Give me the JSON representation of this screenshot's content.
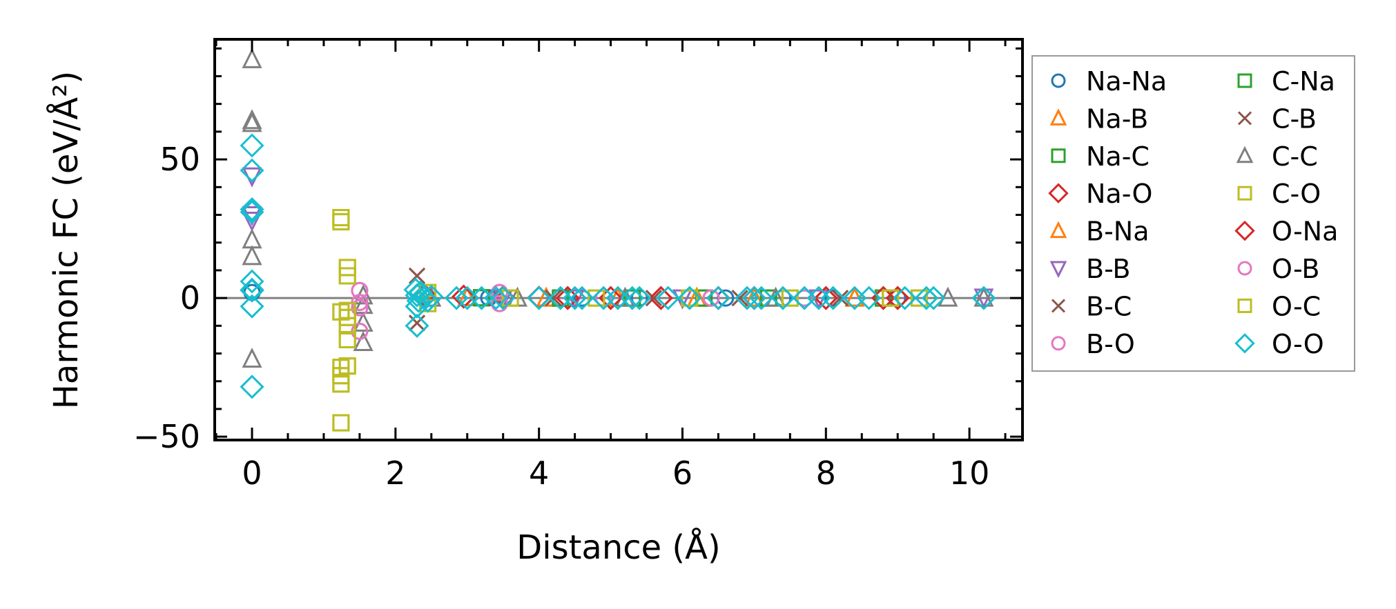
{
  "chart_data": {
    "type": "scatter",
    "title": "",
    "xlabel": "Distance (Å)",
    "ylabel": "Harmonic FC (eV/Å²)",
    "xlim": [
      -0.52,
      10.74
    ],
    "ylim": [
      -51.2,
      93.3
    ],
    "xticks": [
      0,
      2,
      4,
      6,
      8,
      10
    ],
    "xtick_labels": [
      "0",
      "2",
      "4",
      "6",
      "8",
      "10"
    ],
    "yticks": [
      -50,
      0,
      50
    ],
    "ytick_labels": [
      "−50",
      "0",
      "50"
    ],
    "x_minor_step": 0.5,
    "y_minor_step": 10,
    "zero_line": true,
    "grid": false,
    "legend_position": "outside-right",
    "legend_columns": 2,
    "series": [
      {
        "name": "Na-Na",
        "marker": "circle",
        "color": "#1f77b4",
        "points": [
          [
            0,
            2
          ],
          [
            3.3,
            0.1
          ],
          [
            4.6,
            0
          ],
          [
            5.4,
            0
          ],
          [
            6.6,
            0
          ],
          [
            7.4,
            0
          ],
          [
            8.1,
            0
          ],
          [
            9.0,
            0
          ]
        ]
      },
      {
        "name": "Na-B",
        "marker": "triangle-up",
        "color": "#ff7f0e",
        "points": [
          [
            3.0,
            0.2
          ],
          [
            4.1,
            0
          ],
          [
            5.1,
            0
          ],
          [
            6.2,
            0
          ],
          [
            7.0,
            0
          ],
          [
            8.4,
            0
          ]
        ]
      },
      {
        "name": "Na-C",
        "marker": "square",
        "color": "#2ca02c",
        "points": [
          [
            3.2,
            0.1
          ],
          [
            4.3,
            0
          ],
          [
            5.3,
            0
          ],
          [
            6.3,
            0
          ],
          [
            7.2,
            0
          ],
          [
            8.8,
            0
          ]
        ]
      },
      {
        "name": "Na-O",
        "marker": "diamond",
        "color": "#d62728",
        "points": [
          [
            2.4,
            1
          ],
          [
            2.95,
            0.5
          ],
          [
            3.5,
            0.2
          ],
          [
            4.0,
            0.1
          ],
          [
            4.4,
            0
          ],
          [
            5.0,
            0
          ],
          [
            5.7,
            0
          ],
          [
            6.5,
            0
          ],
          [
            7.0,
            0
          ],
          [
            8.0,
            0
          ],
          [
            8.8,
            0
          ],
          [
            9.0,
            0
          ]
        ]
      },
      {
        "name": "B-Na",
        "marker": "triangle-up",
        "color": "#ff7f0e",
        "points": [
          [
            3.0,
            0.2
          ],
          [
            4.1,
            0
          ],
          [
            5.1,
            0
          ],
          [
            6.2,
            0
          ],
          [
            7.0,
            0
          ],
          [
            8.4,
            0
          ]
        ]
      },
      {
        "name": "B-B",
        "marker": "triangle-down",
        "color": "#9467bd",
        "points": [
          [
            0,
            44
          ],
          [
            0,
            30
          ],
          [
            0,
            28
          ],
          [
            3.5,
            0
          ],
          [
            4.5,
            0
          ],
          [
            6.0,
            0
          ],
          [
            7.9,
            0
          ],
          [
            10.2,
            0.3
          ]
        ]
      },
      {
        "name": "B-C",
        "marker": "x",
        "color": "#8c564b",
        "points": [
          [
            2.3,
            8
          ],
          [
            2.3,
            -9
          ],
          [
            3.4,
            0
          ],
          [
            4.2,
            0
          ],
          [
            5.6,
            0
          ],
          [
            6.8,
            0
          ],
          [
            8.2,
            0
          ]
        ]
      },
      {
        "name": "B-O",
        "marker": "circle",
        "color": "#e377c2",
        "points": [
          [
            1.5,
            2.7
          ],
          [
            1.5,
            -1.6
          ],
          [
            1.5,
            -3.5
          ],
          [
            1.5,
            -12
          ],
          [
            3.45,
            2
          ],
          [
            3.45,
            -2
          ],
          [
            4.9,
            0
          ],
          [
            6.4,
            0
          ],
          [
            7.7,
            0
          ]
        ]
      },
      {
        "name": "C-Na",
        "marker": "square",
        "color": "#2ca02c",
        "points": [
          [
            3.2,
            0.1
          ],
          [
            4.3,
            0
          ],
          [
            5.3,
            0
          ],
          [
            6.3,
            0
          ],
          [
            7.2,
            0
          ],
          [
            8.8,
            0
          ]
        ]
      },
      {
        "name": "C-B",
        "marker": "x",
        "color": "#8c564b",
        "points": [
          [
            2.3,
            8
          ],
          [
            2.3,
            -9
          ],
          [
            3.4,
            0
          ],
          [
            4.2,
            0
          ],
          [
            5.6,
            0
          ],
          [
            6.8,
            0
          ],
          [
            8.2,
            0
          ]
        ]
      },
      {
        "name": "C-C",
        "marker": "triangle-up",
        "color": "#7f7f7f",
        "points": [
          [
            0,
            86
          ],
          [
            0,
            64
          ],
          [
            0,
            63
          ],
          [
            0,
            21
          ],
          [
            0,
            15
          ],
          [
            0,
            -22
          ],
          [
            1.55,
            0.8
          ],
          [
            1.55,
            -2.6
          ],
          [
            1.55,
            -9
          ],
          [
            1.55,
            -16
          ],
          [
            2.5,
            0
          ],
          [
            3.7,
            0
          ],
          [
            5.2,
            0
          ],
          [
            7.3,
            0
          ],
          [
            9.7,
            0
          ],
          [
            10.2,
            0
          ]
        ]
      },
      {
        "name": "C-O",
        "marker": "square",
        "color": "#bcbd22",
        "points": [
          [
            1.24,
            29
          ],
          [
            1.24,
            27.5
          ],
          [
            1.24,
            -5
          ],
          [
            1.24,
            -25
          ],
          [
            1.24,
            -28
          ],
          [
            1.24,
            -31
          ],
          [
            1.24,
            -45
          ],
          [
            1.33,
            11
          ],
          [
            1.33,
            8
          ],
          [
            1.33,
            -4.5
          ],
          [
            1.33,
            -7
          ],
          [
            1.33,
            -10
          ],
          [
            1.33,
            -15
          ],
          [
            1.33,
            -24.5
          ],
          [
            2.45,
            2
          ],
          [
            2.45,
            -2
          ],
          [
            3.6,
            0
          ],
          [
            4.8,
            0
          ],
          [
            6.1,
            0
          ],
          [
            7.5,
            0
          ],
          [
            8.9,
            0
          ],
          [
            9.3,
            0
          ]
        ]
      },
      {
        "name": "O-Na",
        "marker": "diamond",
        "color": "#d62728",
        "points": [
          [
            2.4,
            1
          ],
          [
            2.95,
            0.5
          ],
          [
            3.5,
            0.2
          ],
          [
            4.0,
            0.1
          ],
          [
            4.4,
            0
          ],
          [
            5.0,
            0
          ],
          [
            5.7,
            0
          ],
          [
            6.5,
            0
          ],
          [
            7.0,
            0
          ],
          [
            8.0,
            0
          ],
          [
            8.8,
            0
          ],
          [
            9.0,
            0
          ]
        ]
      },
      {
        "name": "O-B",
        "marker": "circle",
        "color": "#e377c2",
        "points": [
          [
            1.5,
            2.7
          ],
          [
            1.5,
            -1.6
          ],
          [
            1.5,
            -3.5
          ],
          [
            1.5,
            -12
          ],
          [
            3.45,
            2
          ],
          [
            3.45,
            -2
          ],
          [
            4.9,
            0
          ],
          [
            6.4,
            0
          ],
          [
            7.7,
            0
          ]
        ]
      },
      {
        "name": "O-C",
        "marker": "square",
        "color": "#bcbd22",
        "points": [
          [
            1.24,
            29
          ],
          [
            1.24,
            27.5
          ],
          [
            1.24,
            -5
          ],
          [
            1.24,
            -25
          ],
          [
            1.24,
            -28
          ],
          [
            1.24,
            -31
          ],
          [
            1.24,
            -45
          ],
          [
            1.33,
            11
          ],
          [
            1.33,
            8
          ],
          [
            1.33,
            -4.5
          ],
          [
            1.33,
            -7
          ],
          [
            1.33,
            -10
          ],
          [
            1.33,
            -15
          ],
          [
            1.33,
            -24.5
          ],
          [
            2.45,
            2
          ],
          [
            2.45,
            -2
          ],
          [
            3.6,
            0
          ],
          [
            4.8,
            0
          ],
          [
            6.1,
            0
          ],
          [
            7.5,
            0
          ],
          [
            8.9,
            0
          ],
          [
            9.3,
            0
          ]
        ]
      },
      {
        "name": "O-O",
        "marker": "diamond",
        "color": "#17becf",
        "points": [
          [
            0,
            55
          ],
          [
            0,
            46
          ],
          [
            0,
            32
          ],
          [
            0,
            31
          ],
          [
            0,
            6
          ],
          [
            0,
            3
          ],
          [
            0,
            2.7
          ],
          [
            0,
            -3
          ],
          [
            0,
            -32
          ],
          [
            2.28,
            3
          ],
          [
            2.3,
            1
          ],
          [
            2.32,
            -1
          ],
          [
            2.3,
            -3
          ],
          [
            2.3,
            -10
          ],
          [
            2.35,
            2
          ],
          [
            2.4,
            0
          ],
          [
            2.45,
            -1
          ],
          [
            2.5,
            0.5
          ],
          [
            2.85,
            0
          ],
          [
            3.0,
            0
          ],
          [
            3.2,
            0
          ],
          [
            3.4,
            0
          ],
          [
            3.5,
            0
          ],
          [
            4.0,
            0
          ],
          [
            4.3,
            0
          ],
          [
            4.5,
            0
          ],
          [
            4.6,
            0
          ],
          [
            4.9,
            0
          ],
          [
            5.1,
            0
          ],
          [
            5.3,
            0
          ],
          [
            5.4,
            0
          ],
          [
            5.8,
            0
          ],
          [
            6.1,
            0
          ],
          [
            6.5,
            0
          ],
          [
            6.9,
            0
          ],
          [
            7.0,
            0
          ],
          [
            7.1,
            0
          ],
          [
            7.4,
            0
          ],
          [
            7.7,
            0
          ],
          [
            7.9,
            0
          ],
          [
            8.1,
            0
          ],
          [
            8.4,
            0
          ],
          [
            8.6,
            0
          ],
          [
            9.1,
            0
          ],
          [
            9.4,
            0
          ],
          [
            9.5,
            0
          ],
          [
            10.2,
            0
          ]
        ]
      }
    ]
  }
}
